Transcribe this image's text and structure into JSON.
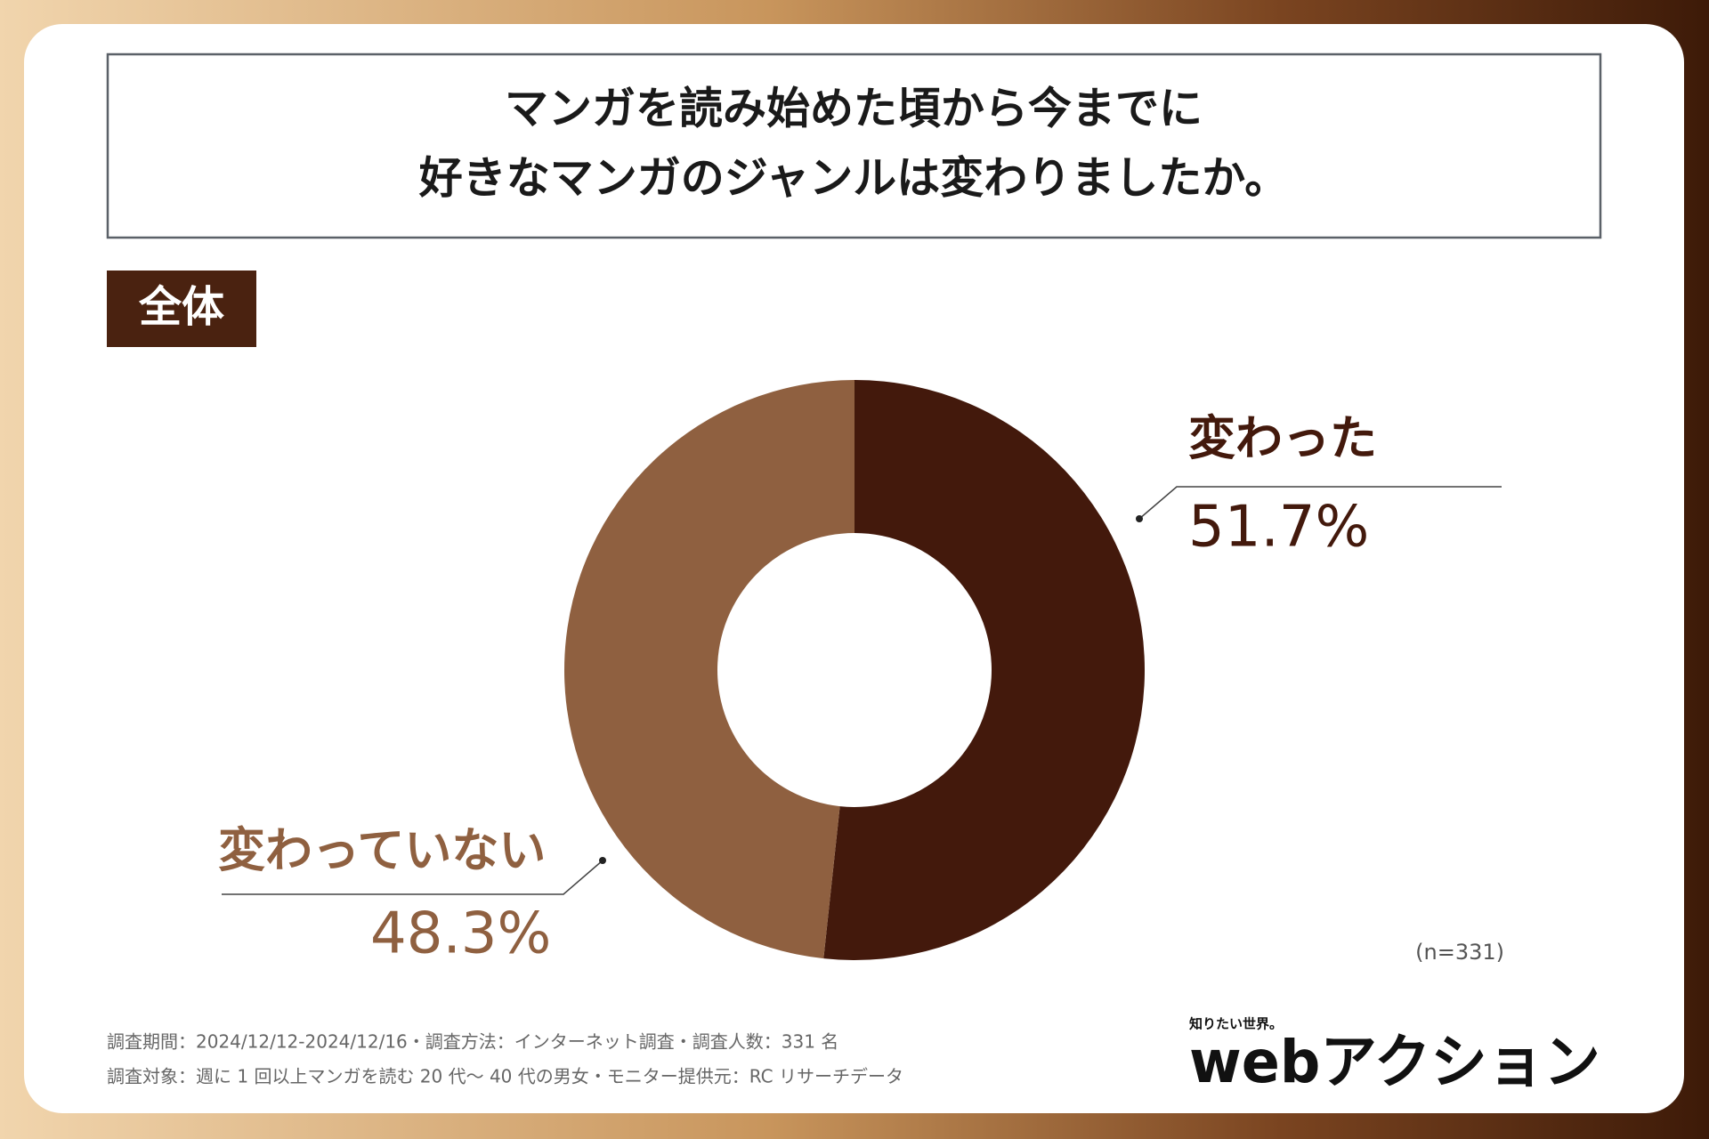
{
  "chart_data": {
    "type": "donut",
    "title": [
      "マンガを読み始めた頃から今までに",
      "好きなマンガのジャンルは変わりましたか。"
    ],
    "subtitle": "全体",
    "categories": [
      "変わった",
      "変わっていない"
    ],
    "values": [
      51.7,
      48.3
    ],
    "value_labels": [
      "51.7%",
      "48.3%"
    ],
    "colors": [
      "#43190c",
      "#8f6040"
    ],
    "note": "(n=331)",
    "footnotes": [
      "調査期間：2024/12/12-2024/12/16・調査方法：インターネット調査・調査人数：331 名",
      "調査対象：週に 1 回以上マンガを読む 20 代～ 40 代の男女・モニター提供元：RC リサーチデータ"
    ],
    "logo": {
      "tagline": "知りたい世界。",
      "name": "webアクション"
    }
  }
}
